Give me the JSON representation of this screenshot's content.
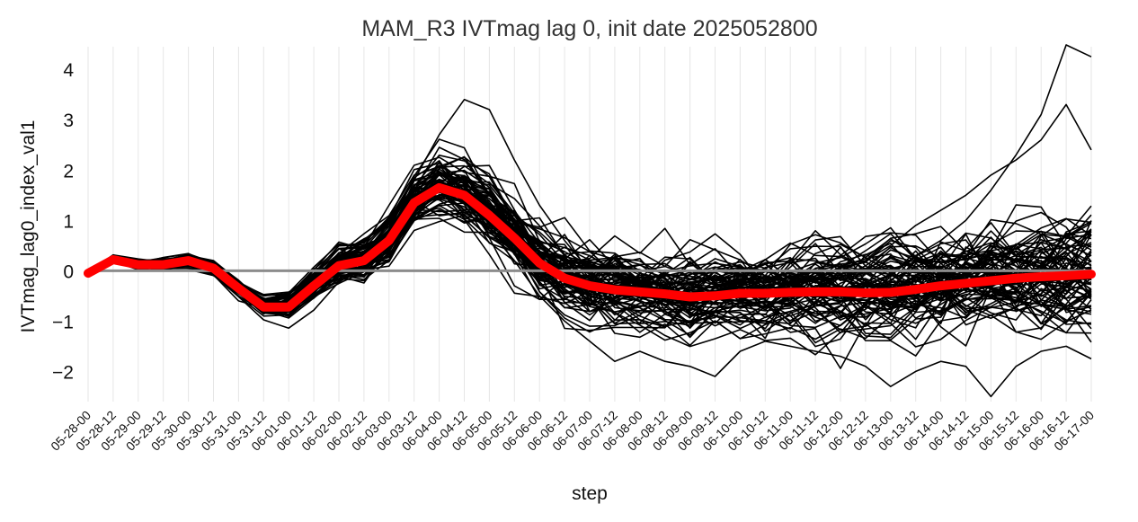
{
  "chart_data": {
    "type": "line",
    "title": "MAM_R3 IVTmag lag 0, init date 2025052800",
    "xlabel": "step",
    "ylabel": "IVTmag_lag0_index_val1",
    "categories": [
      "05-28-00",
      "05-28-12",
      "05-29-00",
      "05-29-12",
      "05-30-00",
      "05-30-12",
      "05-31-00",
      "05-31-12",
      "06-01-00",
      "06-01-12",
      "06-02-00",
      "06-02-12",
      "06-03-00",
      "06-03-12",
      "06-04-00",
      "06-04-12",
      "06-05-00",
      "06-05-12",
      "06-06-00",
      "06-06-12",
      "06-07-00",
      "06-07-12",
      "06-08-00",
      "06-08-12",
      "06-09-00",
      "06-09-12",
      "06-10-00",
      "06-10-12",
      "06-11-00",
      "06-11-12",
      "06-12-00",
      "06-12-12",
      "06-13-00",
      "06-13-12",
      "06-14-00",
      "06-14-12",
      "06-15-00",
      "06-15-12",
      "06-16-00",
      "06-16-12",
      "06-17-00"
    ],
    "yticks": [
      -2,
      -1,
      0,
      1,
      2,
      3,
      4
    ],
    "ytick_labels": [
      "−2",
      "−1",
      "0",
      "1",
      "2",
      "3",
      "4"
    ],
    "ylim": [
      -2.6,
      4.45
    ],
    "grid": "vertical",
    "ensemble_member_count": 80,
    "ensemble_color": "#000000",
    "mean_color": "#ff0000",
    "zero_line_color": "#8c8c8c",
    "ensemble_mean": [
      -0.05,
      0.22,
      0.12,
      0.12,
      0.2,
      0.05,
      -0.35,
      -0.72,
      -0.72,
      -0.3,
      0.1,
      0.2,
      0.6,
      1.35,
      1.65,
      1.5,
      1.1,
      0.65,
      0.15,
      -0.15,
      -0.3,
      -0.38,
      -0.42,
      -0.46,
      -0.52,
      -0.5,
      -0.45,
      -0.45,
      -0.43,
      -0.42,
      -0.42,
      -0.44,
      -0.43,
      -0.37,
      -0.3,
      -0.25,
      -0.2,
      -0.15,
      -0.12,
      -0.1,
      -0.07
    ],
    "ensemble_spread": [
      0.02,
      0.05,
      0.08,
      0.1,
      0.12,
      0.12,
      0.15,
      0.18,
      0.22,
      0.25,
      0.3,
      0.35,
      0.4,
      0.45,
      0.5,
      0.55,
      0.6,
      0.62,
      0.65,
      0.65,
      0.66,
      0.68,
      0.68,
      0.68,
      0.68,
      0.7,
      0.7,
      0.7,
      0.7,
      0.7,
      0.7,
      0.72,
      0.74,
      0.76,
      0.78,
      0.82,
      0.86,
      0.9,
      0.95,
      1.0,
      1.0
    ],
    "highlighted_members": [
      {
        "values": [
          -0.05,
          0.2,
          0.15,
          0.1,
          0.25,
          0.05,
          -0.3,
          -0.6,
          -0.55,
          -0.2,
          0.2,
          0.5,
          1.0,
          1.8,
          2.7,
          3.4,
          3.2,
          2.2,
          1.3,
          0.6,
          0.0,
          -0.6,
          -0.9,
          -1.1,
          -1.0,
          -0.8,
          -0.7,
          -0.6,
          -0.9,
          -0.7,
          -0.5,
          -0.3,
          -0.1,
          0.3,
          0.6,
          1.0,
          1.6,
          2.3,
          3.1,
          4.5,
          4.25
        ]
      },
      {
        "values": [
          -0.05,
          0.22,
          0.1,
          0.15,
          0.18,
          0.0,
          -0.35,
          -0.7,
          -0.8,
          -0.35,
          0.0,
          0.2,
          0.5,
          1.2,
          1.5,
          1.6,
          1.2,
          0.6,
          0.2,
          -0.2,
          -0.5,
          -0.6,
          -0.7,
          -0.6,
          -0.5,
          -0.4,
          -0.3,
          -0.2,
          -0.3,
          -0.1,
          0.0,
          0.2,
          0.5,
          0.9,
          1.2,
          1.5,
          1.9,
          2.2,
          2.6,
          3.3,
          2.4
        ]
      },
      {
        "values": [
          -0.05,
          0.25,
          0.12,
          0.12,
          0.2,
          0.1,
          -0.3,
          -0.7,
          -0.7,
          -0.3,
          0.1,
          0.3,
          0.6,
          1.3,
          1.6,
          1.2,
          0.8,
          0.2,
          -0.5,
          -1.0,
          -1.4,
          -1.8,
          -1.6,
          -1.8,
          -1.9,
          -2.1,
          -1.6,
          -1.4,
          -1.5,
          -1.6,
          -1.7,
          -1.9,
          -2.3,
          -2.0,
          -1.8,
          -1.9,
          -2.5,
          -1.9,
          -1.6,
          -1.5,
          -1.75
        ]
      }
    ]
  }
}
